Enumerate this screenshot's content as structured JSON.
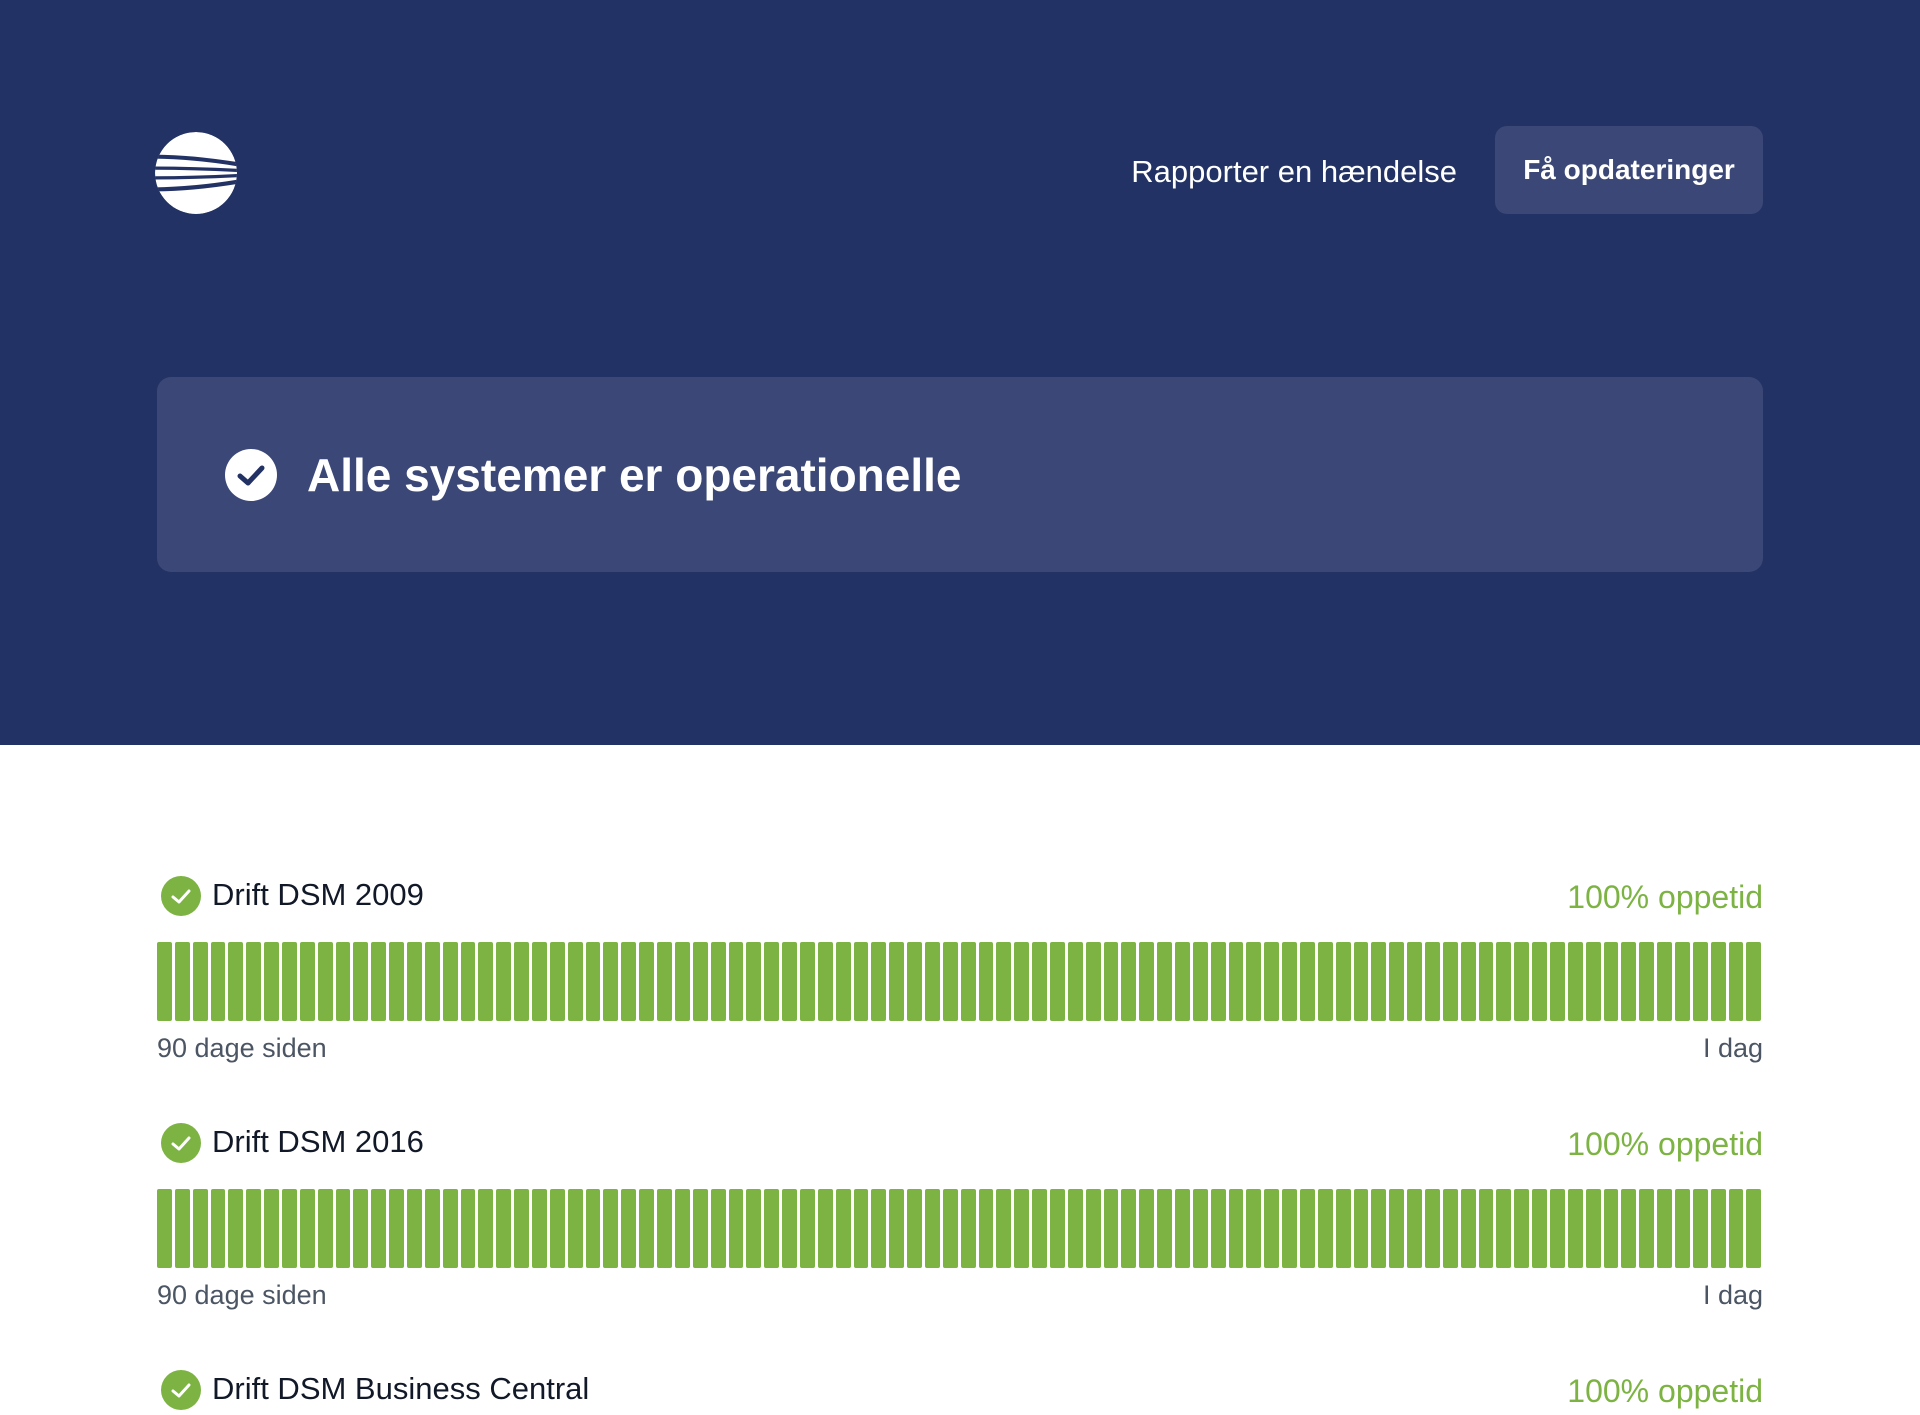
{
  "header": {
    "logo": "striped-globe-logo",
    "report_incident_label": "Rapporter en hændelse",
    "get_updates_label": "Få opdateringer"
  },
  "status": {
    "icon": "check-circle-icon",
    "title": "Alle systemer er operationelle"
  },
  "colors": {
    "header_bg": "#223264",
    "banner_bg": "#3b4776",
    "button_bg": "#3a4777",
    "operational": "#7cb342"
  },
  "components": [
    {
      "name": "Drift DSM 2009",
      "uptime_label": "100% oppetid",
      "status": "operational",
      "days": 90,
      "start_label": "90 dage siden",
      "end_label": "I dag"
    },
    {
      "name": "Drift DSM 2016",
      "uptime_label": "100% oppetid",
      "status": "operational",
      "days": 90,
      "start_label": "90 dage siden",
      "end_label": "I dag"
    },
    {
      "name": "Drift DSM Business Central",
      "uptime_label": "100% oppetid",
      "status": "operational"
    }
  ]
}
